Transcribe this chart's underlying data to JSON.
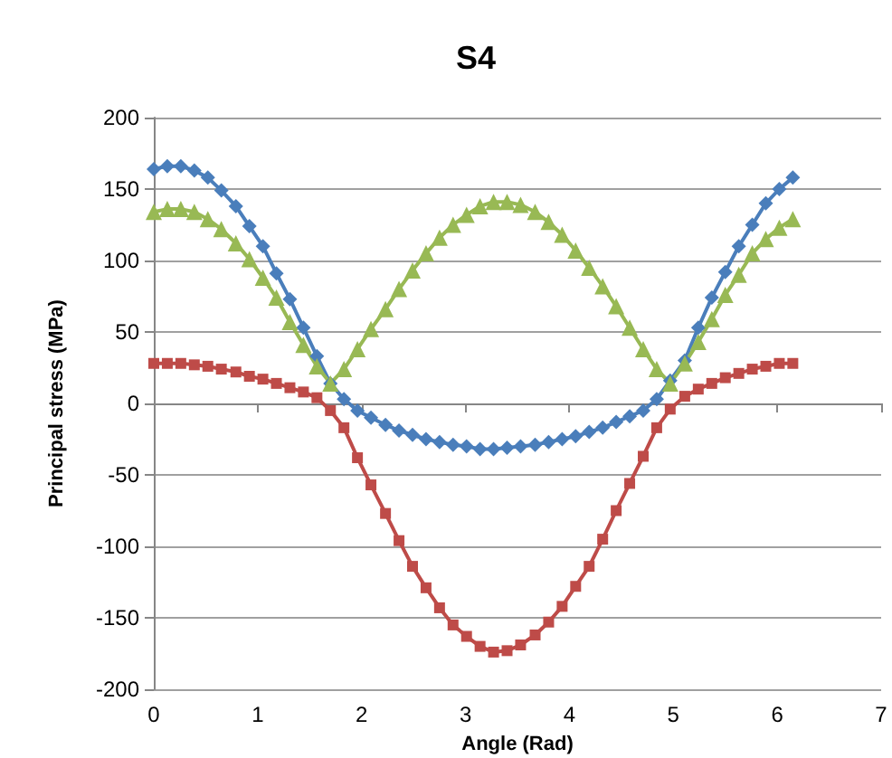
{
  "chart_data": {
    "type": "line",
    "title": "S4",
    "xlabel": "Angle (Rad)",
    "ylabel": "Principal stress (MPa)",
    "x": [
      0,
      0.13,
      0.26,
      0.39,
      0.52,
      0.65,
      0.79,
      0.92,
      1.05,
      1.18,
      1.31,
      1.44,
      1.57,
      1.7,
      1.83,
      1.96,
      2.09,
      2.23,
      2.36,
      2.49,
      2.62,
      2.75,
      2.88,
      3.01,
      3.14,
      3.27,
      3.4,
      3.53,
      3.67,
      3.8,
      3.93,
      4.06,
      4.19,
      4.32,
      4.45,
      4.58,
      4.71,
      4.84,
      4.97,
      5.11,
      5.24,
      5.37,
      5.5,
      5.63,
      5.76,
      5.89,
      6.02,
      6.15
    ],
    "xlim": [
      0,
      7
    ],
    "xticks": [
      0,
      1,
      2,
      3,
      4,
      5,
      6,
      7
    ],
    "ylim": [
      -200,
      200
    ],
    "yticks": [
      -200,
      -150,
      -100,
      -50,
      0,
      50,
      100,
      150,
      200
    ],
    "grid": "y",
    "line_style": "solid",
    "series": [
      {
        "color": "#4a7ebb",
        "marker": "diamond",
        "values": [
          164,
          166,
          166,
          163,
          158,
          149,
          138,
          124,
          110,
          91,
          73,
          53,
          33,
          14,
          3,
          -5,
          -10,
          -15,
          -19,
          -22,
          -25,
          -27,
          -29,
          -30,
          -32,
          -32,
          -31,
          -30,
          -29,
          -27,
          -25,
          -23,
          -20,
          -17,
          -13,
          -9,
          -5,
          3,
          16,
          30,
          53,
          74,
          92,
          110,
          125,
          140,
          150,
          158
        ]
      },
      {
        "color": "#be4b48",
        "marker": "square",
        "values": [
          28,
          28,
          28,
          27,
          26,
          24,
          22,
          19,
          17,
          14,
          11,
          8,
          4,
          -5,
          -17,
          -38,
          -57,
          -77,
          -96,
          -114,
          -129,
          -143,
          -155,
          -163,
          -170,
          -174,
          -173,
          -169,
          -162,
          -153,
          -142,
          -128,
          -114,
          -95,
          -75,
          -56,
          -37,
          -17,
          -4,
          5,
          10,
          14,
          18,
          21,
          24,
          26,
          28,
          28
        ]
      },
      {
        "color": "#98b954",
        "marker": "triangle",
        "values": [
          134,
          136,
          136,
          134,
          129,
          122,
          112,
          101,
          88,
          74,
          57,
          41,
          26,
          14,
          24,
          38,
          52,
          66,
          80,
          93,
          105,
          116,
          125,
          132,
          138,
          141,
          141,
          139,
          134,
          127,
          118,
          107,
          95,
          82,
          68,
          53,
          38,
          24,
          14,
          28,
          43,
          59,
          76,
          90,
          105,
          115,
          123,
          129
        ]
      }
    ]
  }
}
